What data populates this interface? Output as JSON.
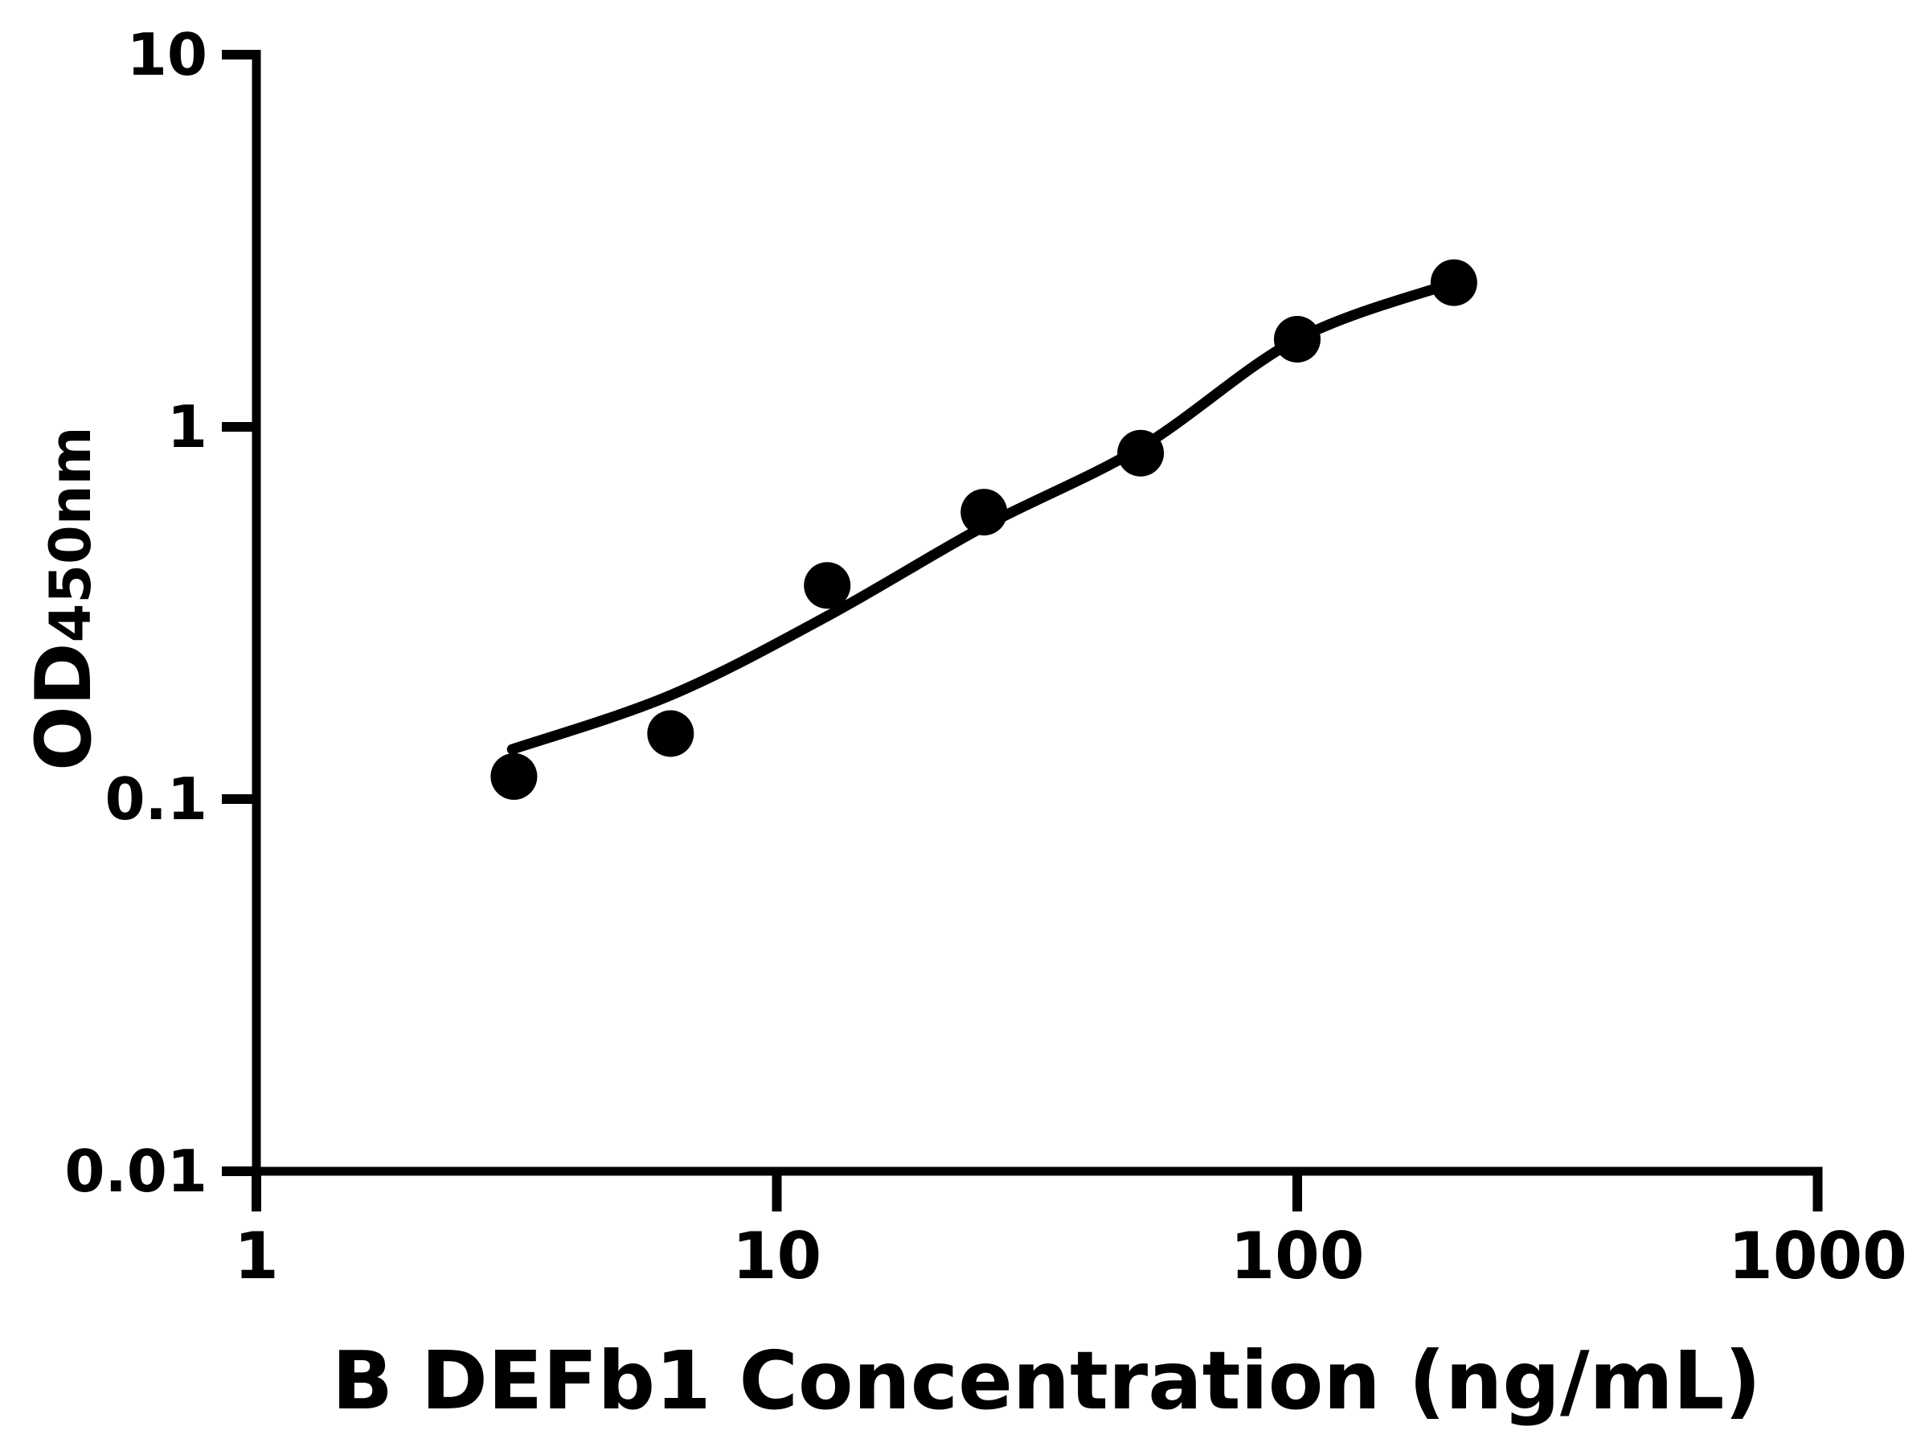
{
  "chart_data": {
    "type": "scatter",
    "title": "",
    "xlabel": "B DEFb1 Concentration (ng/mL)",
    "ylabel": "OD450nm",
    "ylabel_main": "OD",
    "ylabel_sub": "450nm",
    "x_scale": "log10",
    "y_scale": "log10",
    "xlim": [
      1,
      1000
    ],
    "ylim": [
      0.01,
      10
    ],
    "x_ticks": [
      1,
      10,
      100,
      1000
    ],
    "x_tick_labels": [
      "1",
      "10",
      "100",
      "1000"
    ],
    "y_ticks": [
      10,
      1,
      0.1,
      0.01
    ],
    "y_tick_labels": [
      "10",
      "1",
      "0.1",
      "0.01"
    ],
    "grid": false,
    "legend": null,
    "ink_color": "#000000",
    "background_color": "#ffffff",
    "series": [
      {
        "name": "standards",
        "type": "scatter",
        "marker": "filled-circle",
        "color": "#000000",
        "x": [
          3.125,
          6.25,
          12.5,
          25,
          50,
          100,
          200
        ],
        "y": [
          0.115,
          0.15,
          0.375,
          0.59,
          0.85,
          1.72,
          2.44
        ]
      },
      {
        "name": "fit-curve",
        "type": "line",
        "color": "#000000",
        "x": [
          3.1,
          6.25,
          12.5,
          25,
          50,
          100,
          200
        ],
        "y": [
          0.136,
          0.19,
          0.31,
          0.54,
          0.88,
          1.72,
          2.44
        ]
      }
    ]
  }
}
